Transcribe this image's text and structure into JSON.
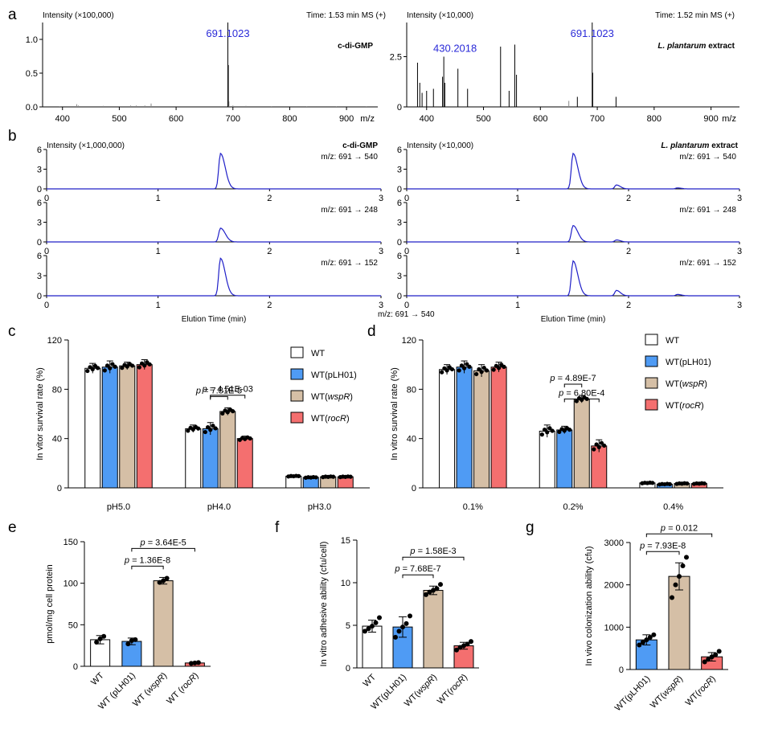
{
  "panels": {
    "a": {
      "letter": "a",
      "left": {
        "ylabel": "Intensity (×100,000)",
        "time": "Time: 1.53 min MS (+)",
        "sample": "c-di-GMP",
        "peak_label": "691.1023",
        "xlabel": "m/z",
        "xlim": [
          365,
          955
        ],
        "ylim": [
          0,
          1.25
        ],
        "xticks": [
          400,
          500,
          600,
          700,
          800,
          900
        ],
        "yticks": [
          0.0,
          0.5,
          1.0
        ],
        "ytick_labels": [
          "0.0",
          "0.5",
          "1.0"
        ],
        "peaks": [
          [
            691.1,
            1.25
          ],
          [
            691.9,
            0.62
          ],
          [
            693.0,
            0.08
          ],
          [
            425,
            0.04
          ],
          [
            428,
            0.02
          ],
          [
            556,
            0.05
          ],
          [
            545,
            0.02
          ],
          [
            530,
            0.02
          ],
          [
            520,
            0.02
          ],
          [
            472,
            0.015
          ],
          [
            395,
            0.01
          ],
          [
            700,
            0.02
          ],
          [
            723,
            0.015
          ],
          [
            768,
            0.01
          ],
          [
            830,
            0.01
          ],
          [
            882,
            0.01
          ],
          [
            935,
            0.01
          ]
        ]
      },
      "right": {
        "ylabel": "Intensity (×10,000)",
        "time": "Time: 1.52 min MS (+)",
        "sample_species": "L. plantarum",
        "sample_suffix": " extract",
        "peak_label": "691.1023",
        "peak2_label": "430.2018",
        "xlabel": "m/z",
        "xlim": [
          365,
          950
        ],
        "ylim": [
          0,
          4.2
        ],
        "xticks": [
          400,
          500,
          600,
          700,
          800,
          900
        ],
        "yticks": [
          0.0,
          2.5
        ],
        "ytick_labels": [
          "0",
          "2.5"
        ],
        "peaks": [
          [
            691.1,
            4.2
          ],
          [
            692.0,
            1.7
          ],
          [
            430.2,
            2.5
          ],
          [
            428,
            1.5
          ],
          [
            432,
            1.2
          ],
          [
            384,
            2.2
          ],
          [
            388,
            1.2
          ],
          [
            392,
            0.7
          ],
          [
            400,
            0.8
          ],
          [
            412,
            0.9
          ],
          [
            455,
            1.9
          ],
          [
            472,
            0.9
          ],
          [
            530,
            3.0
          ],
          [
            555,
            3.1
          ],
          [
            558,
            1.6
          ],
          [
            545,
            0.8
          ],
          [
            650,
            0.3
          ],
          [
            665,
            0.5
          ],
          [
            733,
            0.5
          ]
        ]
      }
    },
    "b": {
      "letter": "b",
      "left_ylabel": "Intensity (×1,000,000)",
      "left_sample": "c-di-GMP",
      "right_ylabel": "Intensity (×10,000)",
      "right_species": "L. plantarum",
      "right_suffix": " extract",
      "xlabel": "Elution Time (min)",
      "xticks": [
        0,
        1,
        2,
        3
      ],
      "yticks": [
        0,
        3,
        6
      ],
      "transitions": [
        "m/z: 691 → 540",
        "m/z: 691 → 248",
        "m/z: 691 → 152"
      ],
      "stray_label": "m/z: 691 → 540",
      "line_color": "#2020c8",
      "left_traces": [
        {
          "peak_time": 1.56,
          "height": 5.4
        },
        {
          "peak_time": 1.56,
          "height": 2.1
        },
        {
          "peak_time": 1.56,
          "height": 5.6
        }
      ],
      "right_traces": [
        {
          "peak_time": 1.5,
          "height": 5.4,
          "minor": [
            [
              1.89,
              0.6
            ],
            [
              2.44,
              0.15
            ]
          ]
        },
        {
          "peak_time": 1.5,
          "height": 2.5,
          "minor": [
            [
              1.89,
              0.3
            ]
          ]
        },
        {
          "peak_time": 1.5,
          "height": 5.2,
          "minor": [
            [
              1.89,
              0.8
            ],
            [
              2.44,
              0.2
            ]
          ]
        }
      ]
    },
    "c": {
      "letter": "c",
      "ylabel": "In vitor survival rate (%)",
      "ylim": [
        0,
        120
      ],
      "yticks": [
        0,
        40,
        80,
        120
      ],
      "groups": [
        "pH5.0",
        "pH4.0",
        "pH3.0"
      ],
      "series": [
        {
          "name": "WT",
          "italic": "",
          "color": "#ffffff",
          "values": [
            97,
            48,
            9.5
          ],
          "err": [
            4,
            3,
            0.5
          ]
        },
        {
          "name": "WT(pLH01)",
          "italic": "",
          "color": "#4f9bf4",
          "values": [
            98,
            48,
            8.5
          ],
          "err": [
            5,
            5,
            0.5
          ]
        },
        {
          "name": "WT(",
          "italic": "wspR",
          "color": "#d5bfa6",
          "values": [
            99,
            62,
            9
          ],
          "err": [
            3,
            3,
            0.5
          ]
        },
        {
          "name": "WT(",
          "italic": "rocR",
          "color": "#f46f6f",
          "values": [
            100,
            40,
            9
          ],
          "err": [
            4,
            2,
            0.5
          ]
        }
      ],
      "brackets": [
        {
          "from": 1,
          "to": 2,
          "p": "p = 7.81E-5"
        },
        {
          "from": 1,
          "to": 3,
          "p": "p = 4.51E-03"
        }
      ]
    },
    "d": {
      "letter": "d",
      "ylabel": "In vitro survival rate (%)",
      "ylim": [
        0,
        120
      ],
      "yticks": [
        0,
        40,
        80,
        120
      ],
      "groups": [
        "0.1%",
        "0.2%",
        "0.4%"
      ],
      "series": [
        {
          "name": "WT",
          "italic": "",
          "color": "#ffffff",
          "values": [
            96,
            46,
            4
          ],
          "err": [
            4,
            5,
            0.5
          ]
        },
        {
          "name": "WT(pLH01)",
          "italic": "",
          "color": "#4f9bf4",
          "values": [
            98,
            47,
            3
          ],
          "err": [
            5,
            3,
            0.5
          ]
        },
        {
          "name": "WT(",
          "italic": "wspR",
          "color": "#d5bfa6",
          "values": [
            95,
            72,
            3.5
          ],
          "err": [
            5,
            3,
            0.5
          ]
        },
        {
          "name": "WT(",
          "italic": "rocR",
          "color": "#f46f6f",
          "values": [
            98,
            34,
            3.5
          ],
          "err": [
            4,
            5,
            0.5
          ]
        }
      ],
      "brackets": [
        {
          "from": 1,
          "to": 2,
          "p": "p = 4.89E-7"
        },
        {
          "from": 1,
          "to": 3,
          "p": "p = 6.80E-4"
        }
      ]
    },
    "e": {
      "letter": "e",
      "ylabel": "pmol/mg cell protein",
      "ylim": [
        0,
        150
      ],
      "yticks": [
        0,
        50,
        100,
        150
      ],
      "categories": [
        "WT",
        "WT (pLH01)",
        "WT (wspR)",
        "WT (rocR)"
      ],
      "colors": [
        "#ffffff",
        "#4f9bf4",
        "#d5bfa6",
        "#f46f6f"
      ],
      "values": [
        32,
        30,
        103,
        4
      ],
      "err": [
        5,
        4,
        4,
        1
      ],
      "points": [
        [
          29,
          33,
          36
        ],
        [
          27,
          31,
          32
        ],
        [
          101,
          103,
          106
        ],
        [
          3.5,
          4,
          4.5
        ]
      ],
      "brackets": [
        {
          "from": 1,
          "to": 2,
          "p": "p = 1.36E-8"
        },
        {
          "from": 1,
          "to": 3,
          "p": "p = 3.64E-5"
        }
      ]
    },
    "f": {
      "letter": "f",
      "ylabel": "In vitro adhesive ability (cfu/cell)",
      "ylim": [
        0,
        15
      ],
      "yticks": [
        0,
        5,
        10,
        15
      ],
      "categories": [
        "WT",
        "WT(pLH01)",
        "WT(wspR)",
        "WT(rocR)"
      ],
      "colors": [
        "#ffffff",
        "#4f9bf4",
        "#d5bfa6",
        "#f46f6f"
      ],
      "values": [
        4.9,
        4.8,
        9.1,
        2.6
      ],
      "err": [
        0.7,
        1.2,
        0.5,
        0.4
      ],
      "points": [
        [
          4.3,
          4.6,
          4.9,
          5.3,
          5.9
        ],
        [
          3.6,
          4.3,
          4.8,
          5.2,
          6.1
        ],
        [
          8.6,
          8.9,
          9.1,
          9.3,
          9.8
        ],
        [
          2.1,
          2.4,
          2.6,
          2.8,
          3.1
        ]
      ],
      "brackets": [
        {
          "from": 1,
          "to": 2,
          "p": "p = 7.68E-7"
        },
        {
          "from": 1,
          "to": 3,
          "p": "p = 1.58E-3"
        }
      ]
    },
    "g": {
      "letter": "g",
      "ylabel": "In vivo colonization ability (cfu)",
      "ylim": [
        0,
        3000
      ],
      "yticks": [
        0,
        1000,
        2000,
        3000
      ],
      "categories": [
        "WT(pLH01)",
        "WT(wspR)",
        "WT(rocR)"
      ],
      "colors": [
        "#4f9bf4",
        "#d5bfa6",
        "#f46f6f"
      ],
      "values": [
        700,
        2200,
        300
      ],
      "err": [
        120,
        320,
        100
      ],
      "points": [
        [
          580,
          640,
          700,
          760,
          820
        ],
        [
          1700,
          2000,
          2200,
          2450,
          2650
        ],
        [
          180,
          240,
          300,
          350,
          430
        ]
      ],
      "brackets": [
        {
          "from": 0,
          "to": 1,
          "p": "p = 7.93E-8"
        },
        {
          "from": 0,
          "to": 2,
          "p": "p = 0.012"
        }
      ]
    }
  },
  "chart_data": [
    {
      "type": "bar",
      "panel": "c",
      "title": "",
      "ylabel": "In vitor survival rate (%)",
      "categories": [
        "pH5.0",
        "pH4.0",
        "pH3.0"
      ],
      "series": [
        {
          "name": "WT",
          "values": [
            97,
            48,
            9.5
          ]
        },
        {
          "name": "WT(pLH01)",
          "values": [
            98,
            48,
            8.5
          ]
        },
        {
          "name": "WT(wspR)",
          "values": [
            99,
            62,
            9
          ]
        },
        {
          "name": "WT(rocR)",
          "values": [
            100,
            40,
            9
          ]
        }
      ],
      "ylim": [
        0,
        120
      ]
    },
    {
      "type": "bar",
      "panel": "d",
      "title": "",
      "ylabel": "In vitro survival rate (%)",
      "categories": [
        "0.1%",
        "0.2%",
        "0.4%"
      ],
      "series": [
        {
          "name": "WT",
          "values": [
            96,
            46,
            4
          ]
        },
        {
          "name": "WT(pLH01)",
          "values": [
            98,
            47,
            3
          ]
        },
        {
          "name": "WT(wspR)",
          "values": [
            95,
            72,
            3.5
          ]
        },
        {
          "name": "WT(rocR)",
          "values": [
            98,
            34,
            3.5
          ]
        }
      ],
      "ylim": [
        0,
        120
      ]
    },
    {
      "type": "bar",
      "panel": "e",
      "ylabel": "pmol/mg cell protein",
      "categories": [
        "WT",
        "WT (pLH01)",
        "WT (wspR)",
        "WT (rocR)"
      ],
      "values": [
        32,
        30,
        103,
        4
      ],
      "ylim": [
        0,
        150
      ]
    },
    {
      "type": "bar",
      "panel": "f",
      "ylabel": "In vitro adhesive ability (cfu/cell)",
      "categories": [
        "WT",
        "WT(pLH01)",
        "WT(wspR)",
        "WT(rocR)"
      ],
      "values": [
        4.9,
        4.8,
        9.1,
        2.6
      ],
      "ylim": [
        0,
        15
      ]
    },
    {
      "type": "bar",
      "panel": "g",
      "ylabel": "In vivo colonization ability (cfu)",
      "categories": [
        "WT(pLH01)",
        "WT(wspR)",
        "WT(rocR)"
      ],
      "values": [
        700,
        2200,
        300
      ],
      "ylim": [
        0,
        3000
      ]
    }
  ]
}
